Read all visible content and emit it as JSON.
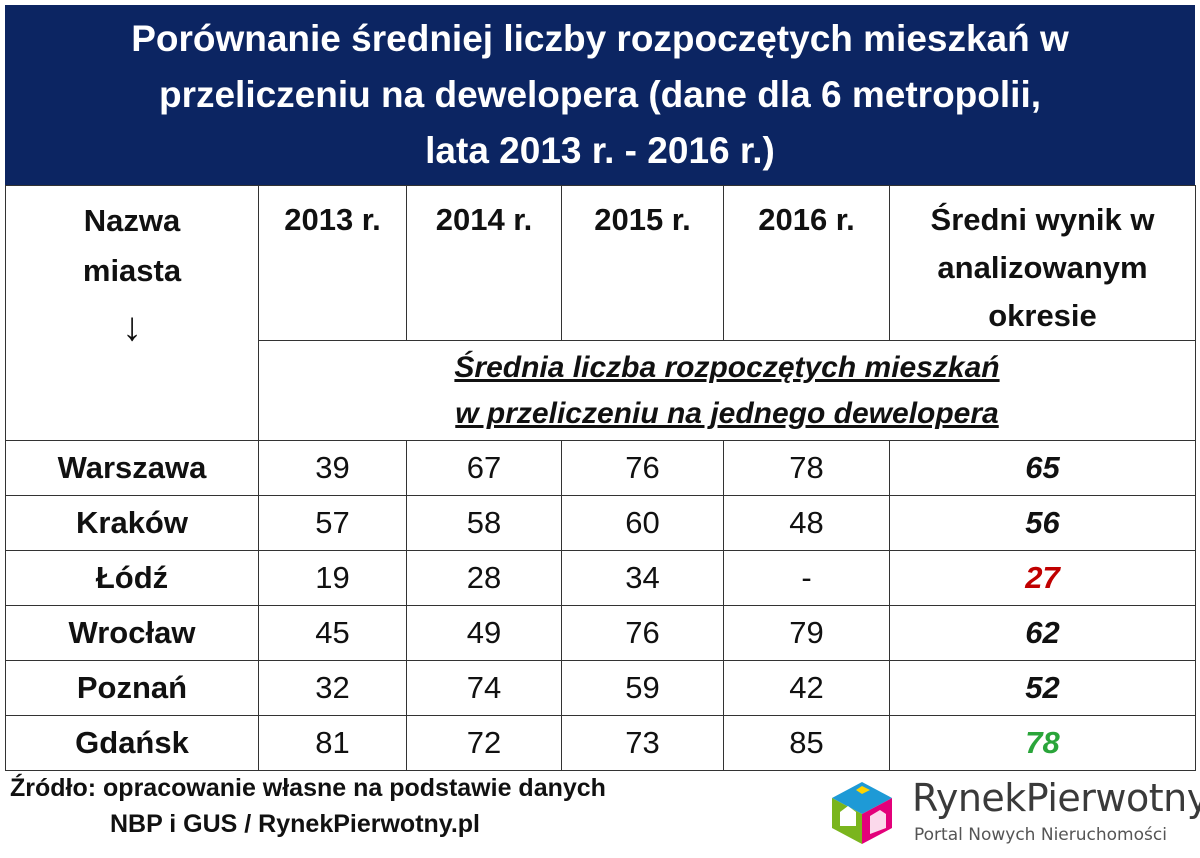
{
  "title": {
    "lines": [
      "Porównanie średniej liczby rozpoczętych mieszkań w",
      "przeliczeniu na dewelopera (dane dla 6 metropolii,",
      "lata 2013 r. - 2016 r.)"
    ]
  },
  "table": {
    "header_city": [
      "Nazwa",
      "miasta"
    ],
    "header_arrow": "↓",
    "header_years": [
      "2013 r.",
      "2014 r.",
      "2015 r.",
      "2016 r."
    ],
    "header_avg": [
      "Średni wynik w",
      "analizowanym",
      "okresie"
    ],
    "subheader": [
      "Średnia liczba rozpoczętych mieszkań",
      "w przeliczeniu na jednego dewelopera"
    ],
    "rows": [
      {
        "city": "Warszawa",
        "values": [
          "39",
          "67",
          "76",
          "78"
        ],
        "avg": "65",
        "avg_color": "#111111"
      },
      {
        "city": "Kraków",
        "values": [
          "57",
          "58",
          "60",
          "48"
        ],
        "avg": "56",
        "avg_color": "#111111"
      },
      {
        "city": "Łódź",
        "values": [
          "19",
          "28",
          "34",
          "-"
        ],
        "avg": "27",
        "avg_color": "#c00000"
      },
      {
        "city": "Wrocław",
        "values": [
          "45",
          "49",
          "76",
          "79"
        ],
        "avg": "62",
        "avg_color": "#111111"
      },
      {
        "city": "Poznań",
        "values": [
          "32",
          "74",
          "59",
          "42"
        ],
        "avg": "52",
        "avg_color": "#111111"
      },
      {
        "city": "Gdańsk",
        "values": [
          "81",
          "72",
          "73",
          "85"
        ],
        "avg": "78",
        "avg_color": "#2aa53a"
      }
    ]
  },
  "chart_data": {
    "type": "table",
    "title": "Porównanie średniej liczby rozpoczętych mieszkań w przeliczeniu na dewelopera (dane dla 6 metropolii, lata 2013 r. - 2016 r.)",
    "columns": [
      "Nazwa miasta",
      "2013 r.",
      "2014 r.",
      "2015 r.",
      "2016 r.",
      "Średni wynik w analizowanym okresie"
    ],
    "subheader": "Średnia liczba rozpoczętych mieszkań w przeliczeniu na jednego dewelopera",
    "rows": [
      [
        "Warszawa",
        39,
        67,
        76,
        78,
        65
      ],
      [
        "Kraków",
        57,
        58,
        60,
        48,
        56
      ],
      [
        "Łódź",
        19,
        28,
        34,
        "-",
        27
      ],
      [
        "Wrocław",
        45,
        49,
        76,
        79,
        62
      ],
      [
        "Poznań",
        32,
        74,
        59,
        42,
        52
      ],
      [
        "Gdańsk",
        81,
        72,
        73,
        85,
        78
      ]
    ]
  },
  "footer": {
    "source_line1": "Źródło: opracowanie własne na podstawie danych",
    "source_line2": "NBP i GUS  / RynekPierwotny.pl"
  },
  "brand": {
    "name": "RynekPierwotny",
    "tagline": "Portal Nowych Nieruchomości",
    "icon": "house-cube-logo-icon",
    "colors": [
      "#7ab51d",
      "#e3007a",
      "#1e9ad6",
      "#ffd400"
    ]
  }
}
